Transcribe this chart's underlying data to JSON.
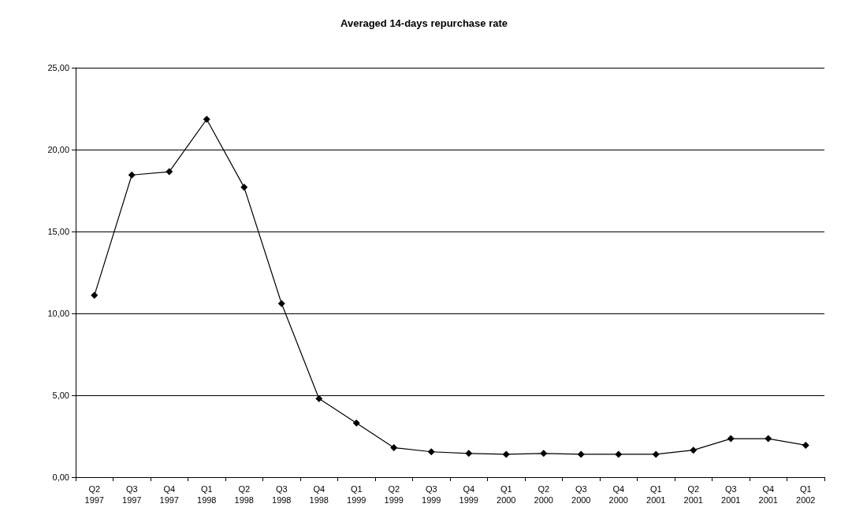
{
  "chart_data": {
    "type": "line",
    "title": "Averaged 14-days repurchase rate",
    "categories": [
      "Q2\n1997",
      "Q3\n1997",
      "Q4\n1997",
      "Q1\n1998",
      "Q2\n1998",
      "Q3\n1998",
      "Q4\n1998",
      "Q1\n1999",
      "Q2\n1999",
      "Q3\n1999",
      "Q4\n1999",
      "Q1\n2000",
      "Q2\n2000",
      "Q3\n2000",
      "Q4\n2000",
      "Q1\n2001",
      "Q2\n2001",
      "Q3\n2001",
      "Q4\n2001",
      "Q1\n2002"
    ],
    "series": [
      {
        "color": "#000000",
        "values": [
          11.1,
          18.45,
          18.65,
          21.85,
          17.7,
          10.6,
          4.8,
          3.3,
          1.8,
          1.55,
          1.45,
          1.4,
          1.45,
          1.4,
          1.4,
          1.4,
          1.65,
          2.35,
          2.35,
          1.95
        ]
      }
    ],
    "ylim": [
      0,
      25
    ],
    "yticks": [
      {
        "value": 0,
        "label": "0,00"
      },
      {
        "value": 5,
        "label": "5,00"
      },
      {
        "value": 10,
        "label": "10,00"
      },
      {
        "value": 15,
        "label": "15,00"
      },
      {
        "value": 20,
        "label": "20,00"
      },
      {
        "value": 25,
        "label": "25,00"
      }
    ],
    "grid": "y",
    "marker": "diamond",
    "line_style": "solid"
  }
}
